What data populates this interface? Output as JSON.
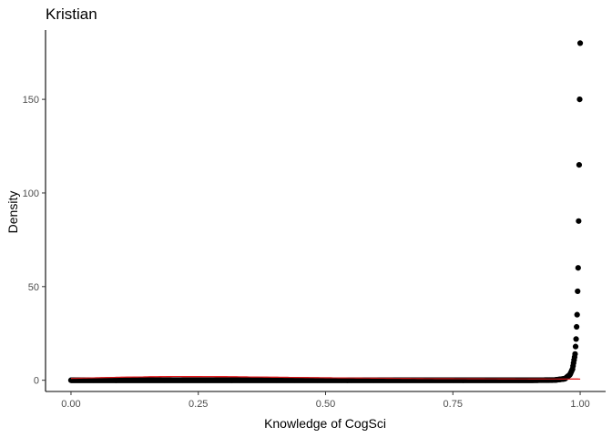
{
  "chart_data": {
    "type": "scatter",
    "title": "Kristian",
    "xlabel": "Knowledge of CogSci",
    "ylabel": "Density",
    "xlim": [
      -0.05,
      1.05
    ],
    "ylim": [
      -6,
      187
    ],
    "x_ticks": [
      0.0,
      0.25,
      0.5,
      0.75,
      1.0
    ],
    "x_tick_labels": [
      "0.00",
      "0.25",
      "0.50",
      "0.75",
      "1.00"
    ],
    "y_ticks": [
      0,
      50,
      100,
      150
    ],
    "y_tick_labels": [
      "0",
      "50",
      "100",
      "150"
    ],
    "grid": false,
    "legend": "none",
    "series": [
      {
        "kind": "points",
        "color": "#000000",
        "description_of_curve": "posterior density evaluated on a 0–1 grid; near 0 until ~0.97, then rises steeply",
        "x": [
          0.0,
          0.05,
          0.1,
          0.15,
          0.2,
          0.25,
          0.3,
          0.35,
          0.4,
          0.45,
          0.5,
          0.55,
          0.6,
          0.65,
          0.7,
          0.75,
          0.8,
          0.85,
          0.9,
          0.95,
          0.97,
          0.98,
          0.985,
          0.99,
          0.992,
          0.994,
          0.996,
          0.997,
          0.998,
          0.999,
          1.0
        ],
        "y": [
          0,
          0,
          0,
          0,
          0,
          0,
          0,
          0,
          0,
          0,
          0,
          0,
          0,
          0,
          0,
          0,
          0,
          0,
          0,
          0.1,
          0.8,
          3,
          6,
          14,
          22,
          35,
          60,
          85,
          115,
          150,
          180
        ]
      },
      {
        "kind": "line",
        "color": "#e41a1c",
        "description_of_curve": "prior density, a low broad hump peaking near 0.2",
        "x": [
          0.0,
          0.1,
          0.2,
          0.3,
          0.4,
          0.5,
          0.6,
          0.7,
          0.8,
          0.9,
          1.0
        ],
        "y": [
          1.0,
          1.6,
          2.0,
          1.9,
          1.6,
          1.3,
          1.1,
          0.9,
          0.8,
          0.7,
          0.6
        ]
      }
    ]
  }
}
